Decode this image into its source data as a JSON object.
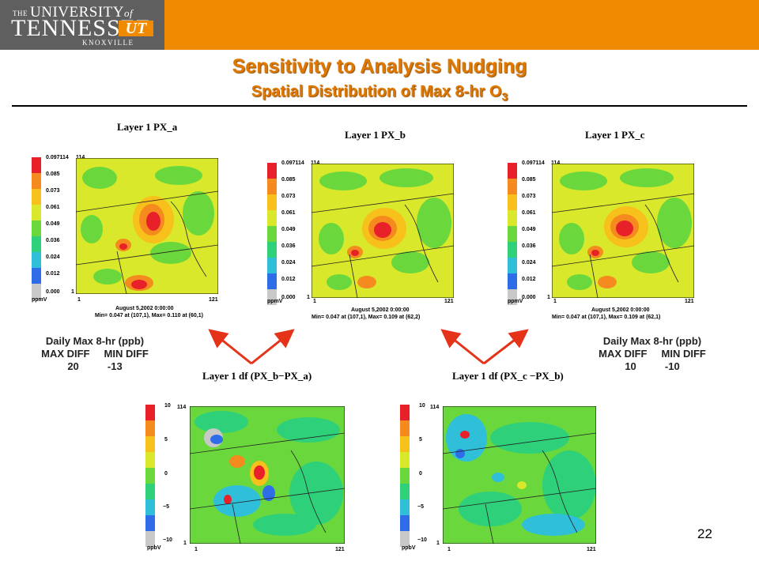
{
  "header": {
    "logo_the": "THE",
    "logo_university": "UNIVERSITY",
    "logo_of": "of",
    "logo_tennessee": "TENNESSEE",
    "logo_ut": "UT",
    "logo_knoxville": "KNOXVILLE"
  },
  "slide": {
    "title": "Sensitivity to Analysis Nudging",
    "subtitle_main": "Spatial Distribution of Max 8-hr O",
    "subtitle_sub": "3",
    "page_number": "22"
  },
  "colors": {
    "header": "#f08a00",
    "logo_bg": "#5f5f5f",
    "title": "#e07800",
    "arrow": "#e5331a"
  },
  "concentration_scale": {
    "unit": "ppmV",
    "ticks": [
      "0.097114",
      "0.085",
      "0.073",
      "0.061",
      "0.049",
      "0.036",
      "0.024",
      "0.012",
      "0.000"
    ],
    "colors": [
      "#e8202a",
      "#f58a1f",
      "#f7c01a",
      "#d9e82a",
      "#6ad83c",
      "#2fd07a",
      "#2fbfd8",
      "#2f6de8",
      "#c8c8c8"
    ]
  },
  "diff_scale": {
    "unit": "ppbV",
    "ticks": [
      "10",
      "5",
      "0",
      "−5",
      "−10"
    ],
    "colors": [
      "#e8202a",
      "#f58a1f",
      "#f7c01a",
      "#d9e82a",
      "#6ad83c",
      "#2fd07a",
      "#2fbfd8",
      "#2f6de8",
      "#c8c8c8"
    ]
  },
  "top_panels": [
    {
      "title": "Layer 1 PX_a",
      "y_top": "114",
      "y_bot": "1",
      "x_left": "1",
      "x_right": "121",
      "date": "August 5,2002 0:00:00",
      "minmax": "Min=  0.047 at (107,1), Max=  0.110 at (60,1)"
    },
    {
      "title": "Layer 1  PX_b",
      "y_top": "114",
      "y_bot": "1",
      "x_left": "1",
      "x_right": "121",
      "date": "August 5,2002 0:00:00",
      "minmax": "Min=  0.047 at (107,1), Max=  0.109 at (62,2)"
    },
    {
      "title": "Layer 1  PX_c",
      "y_top": "114",
      "y_bot": "1",
      "x_left": "1",
      "x_right": "121",
      "date": "August 5,2002 0:00:00",
      "minmax": "Min=  0.047 at (107,1), Max=  0.109 at (62,1)"
    }
  ],
  "diff_panels": [
    {
      "title": "Layer 1 df (PX_b−PX_a)",
      "y_top": "114",
      "y_bot": "1",
      "x_left": "1",
      "x_right": "121"
    },
    {
      "title": "Layer 1 df (PX_c −PX_b)",
      "y_top": "114",
      "y_bot": "1",
      "x_left": "1",
      "x_right": "121"
    }
  ],
  "stats_left": {
    "label": "Daily Max 8-hr (ppb)",
    "headers": "MAX DIFF     MIN DIFF",
    "values": "20          -13"
  },
  "stats_right": {
    "label": "Daily Max 8-hr (ppb)",
    "headers": "MAX DIFF     MIN DIFF",
    "values": "10          -10"
  }
}
